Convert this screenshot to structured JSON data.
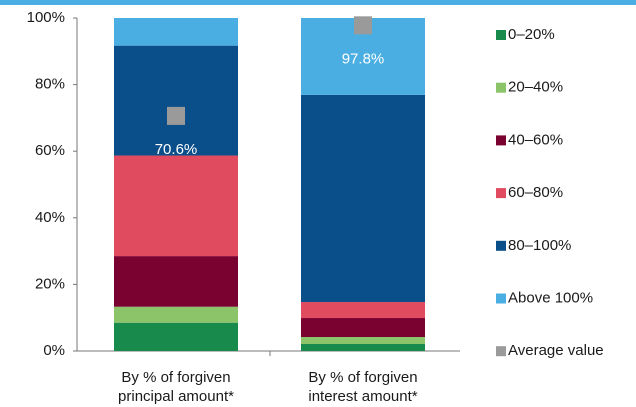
{
  "chart_data": {
    "type": "bar",
    "stacked": true,
    "categories": [
      "By % of forgiven principal amount*",
      "By % of forgiven interest amount*"
    ],
    "series": [
      {
        "name": "0–20%",
        "color": "#178a4c",
        "values": [
          8.5,
          2.1
        ]
      },
      {
        "name": "20–40%",
        "color": "#8cc46a",
        "values": [
          4.8,
          2.1
        ]
      },
      {
        "name": "40–60%",
        "color": "#7a0231",
        "values": [
          15.2,
          5.7
        ]
      },
      {
        "name": "60–80%",
        "color": "#e04b60",
        "values": [
          30.2,
          4.8
        ]
      },
      {
        "name": "80–100%",
        "color": "#0b4f8a",
        "values": [
          33,
          62.2
        ]
      },
      {
        "name": "Above 100%",
        "color": "#4baee2",
        "values": [
          8.3,
          23.1
        ]
      }
    ],
    "markers": {
      "name": "Average value",
      "color": "#9a9a9a",
      "values": [
        70.6,
        97.8
      ],
      "value_labels": [
        "70.6%",
        "97.8%"
      ]
    },
    "ylim": [
      0,
      100
    ],
    "yticks": [
      {
        "value": 0,
        "label": "0%"
      },
      {
        "value": 20,
        "label": "20%"
      },
      {
        "value": 40,
        "label": "40%"
      },
      {
        "value": 60,
        "label": "60%"
      },
      {
        "value": 80,
        "label": "80%"
      },
      {
        "value": 100,
        "label": "100%"
      }
    ],
    "legend": "right"
  }
}
